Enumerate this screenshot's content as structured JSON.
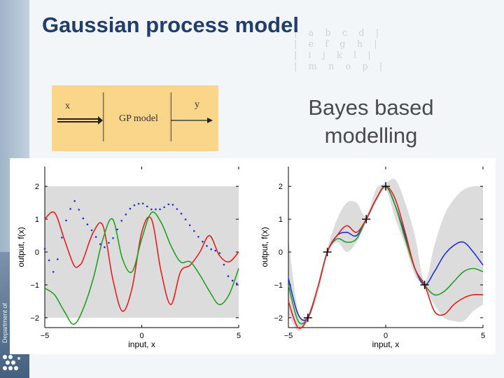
{
  "slide": {
    "title": "Gaussian process model",
    "side_text": "Department of",
    "bayes_line1": "Bayes based",
    "bayes_line2": "modelling",
    "matrix_decoration": "| a b c d |\n| e f g h |\n| i j k l |\n| m n o p |"
  },
  "diagram": {
    "input_label": "x",
    "model_label": "GP model",
    "output_label": "y"
  },
  "colors": {
    "title": "#1f3d6e",
    "box": "#f9d68a",
    "band": "#dcdcdc",
    "red": "#e02020",
    "green": "#22a022",
    "blue": "#2030d0"
  },
  "chart_data": [
    {
      "type": "line",
      "title": "",
      "xlabel": "input, x",
      "ylabel": "output, f(x)",
      "xlim": [
        -5,
        5
      ],
      "ylim": [
        -2.3,
        2.6
      ],
      "xticks": [
        "-5",
        "0",
        "5"
      ],
      "yticks": [
        "-2",
        "-1",
        "0",
        "1",
        "2"
      ],
      "band": {
        "lower": -2,
        "upper": 2
      },
      "series": [
        {
          "color": "red",
          "style": "solid",
          "x": [
            -5,
            -4.5,
            -4,
            -3.5,
            -3.2,
            -3,
            -2.5,
            -2,
            -1.5,
            -1,
            -0.5,
            0,
            0.5,
            1,
            1.5,
            2,
            2.5,
            3,
            3.5,
            4,
            4.5,
            5
          ],
          "y": [
            1.0,
            1.2,
            0.4,
            -0.4,
            -0.4,
            -0.2,
            0.6,
            0.8,
            -0.8,
            -1.8,
            -1.1,
            0.6,
            1.0,
            -0.6,
            -1.6,
            -0.6,
            -0.4,
            0.0,
            0.5,
            -0.1,
            -0.3,
            0.0
          ]
        },
        {
          "color": "green",
          "style": "solid",
          "x": [
            -5,
            -4.5,
            -4,
            -3.5,
            -3,
            -2.5,
            -2,
            -1.5,
            -1,
            -0.5,
            0,
            0.5,
            1,
            1.5,
            2,
            2.5,
            3,
            3.5,
            4,
            4.5,
            5
          ],
          "y": [
            -1.1,
            -1.3,
            -1.8,
            -2.2,
            -1.7,
            -0.8,
            0.4,
            1.0,
            -0.2,
            -0.6,
            0.4,
            1.2,
            0.9,
            0.2,
            -0.3,
            -0.3,
            -0.7,
            -1.2,
            -1.6,
            -1.3,
            -0.5
          ]
        },
        {
          "color": "blue",
          "style": "dotted",
          "x": [
            -5,
            -4.5,
            -4,
            -3.5,
            -3,
            -2.5,
            -2,
            -1.5,
            -1,
            -0.5,
            0,
            0.5,
            1,
            1.5,
            2,
            2.5,
            3,
            3.5,
            4,
            4.5,
            5
          ],
          "y": [
            0.1,
            -0.7,
            0.8,
            1.6,
            1.0,
            0.6,
            0.1,
            0.4,
            1.0,
            1.4,
            1.5,
            1.3,
            1.3,
            1.5,
            1.2,
            0.8,
            0.4,
            0.1,
            0.0,
            -0.8,
            -1.0
          ]
        }
      ]
    },
    {
      "type": "line",
      "title": "",
      "xlabel": "input, x",
      "ylabel": "output, f(x)",
      "xlim": [
        -5,
        5
      ],
      "ylim": [
        -2.3,
        2.6
      ],
      "xticks": [
        "-5",
        "0",
        "5"
      ],
      "yticks": [
        "-2",
        "-1",
        "0",
        "1",
        "2"
      ],
      "observations": {
        "x": [
          -4,
          -3,
          -1,
          0,
          2
        ],
        "y": [
          -2,
          0,
          1,
          2,
          -1
        ]
      },
      "band": {
        "x": [
          -5,
          -4.5,
          -4,
          -3.5,
          -3,
          -2.5,
          -2,
          -1.5,
          -1,
          -0.5,
          0,
          0.5,
          1,
          1.5,
          2,
          2.5,
          3,
          3.5,
          4,
          4.5,
          5
        ],
        "lower": [
          -1.9,
          -2.4,
          -2.1,
          -1.3,
          -0.1,
          0.3,
          0.0,
          0.3,
          0.9,
          1.5,
          1.9,
          1.0,
          0.2,
          -0.7,
          -1.1,
          -1.6,
          -2.0,
          -2.1,
          -2.1,
          -1.8,
          -1.6
        ],
        "upper": [
          0.4,
          -1.8,
          -1.9,
          -1.2,
          0.1,
          1.0,
          1.5,
          1.5,
          1.1,
          1.9,
          2.1,
          2.2,
          1.5,
          0.5,
          -0.9,
          0.2,
          1.1,
          1.6,
          1.9,
          2.0,
          2.0
        ]
      },
      "series": [
        {
          "color": "blue",
          "style": "solid",
          "x": [
            -5,
            -4.5,
            -4,
            -3.5,
            -3,
            -2.5,
            -2,
            -1.5,
            -1,
            -0.5,
            0,
            0.5,
            1,
            1.5,
            2,
            2.5,
            3,
            3.5,
            4,
            4.5,
            5
          ],
          "y": [
            -0.8,
            -1.9,
            -2.0,
            -1.1,
            0.0,
            0.5,
            0.6,
            0.5,
            1.0,
            1.6,
            2.0,
            1.4,
            0.5,
            -0.5,
            -1.0,
            -0.6,
            -0.1,
            0.2,
            0.3,
            0.0,
            -0.4
          ]
        },
        {
          "color": "green",
          "style": "solid",
          "x": [
            -5,
            -4.5,
            -4,
            -3.5,
            -3,
            -2.5,
            -2,
            -1.5,
            -1,
            -0.5,
            0,
            0.5,
            1,
            1.5,
            2,
            2.5,
            3,
            3.5,
            4,
            4.5,
            5
          ],
          "y": [
            -1.0,
            -2.1,
            -2.0,
            -1.1,
            0.0,
            0.4,
            0.3,
            0.4,
            1.0,
            1.6,
            2.0,
            1.4,
            0.4,
            -0.5,
            -1.0,
            -1.3,
            -1.2,
            -0.9,
            -0.6,
            -0.5,
            -0.6
          ]
        },
        {
          "color": "red",
          "style": "solid",
          "x": [
            -5,
            -4.5,
            -4,
            -3.5,
            -3,
            -2.5,
            -2,
            -1.5,
            -1,
            -0.5,
            0,
            0.5,
            1,
            1.5,
            2,
            2.5,
            3,
            3.5,
            4,
            4.5,
            5
          ],
          "y": [
            -1.5,
            -2.3,
            -2.0,
            -1.1,
            0.0,
            0.5,
            0.8,
            0.6,
            1.0,
            1.6,
            2.0,
            1.6,
            0.6,
            -0.5,
            -1.0,
            -1.8,
            -1.9,
            -1.6,
            -1.4,
            -1.3,
            -1.3
          ]
        }
      ]
    }
  ]
}
